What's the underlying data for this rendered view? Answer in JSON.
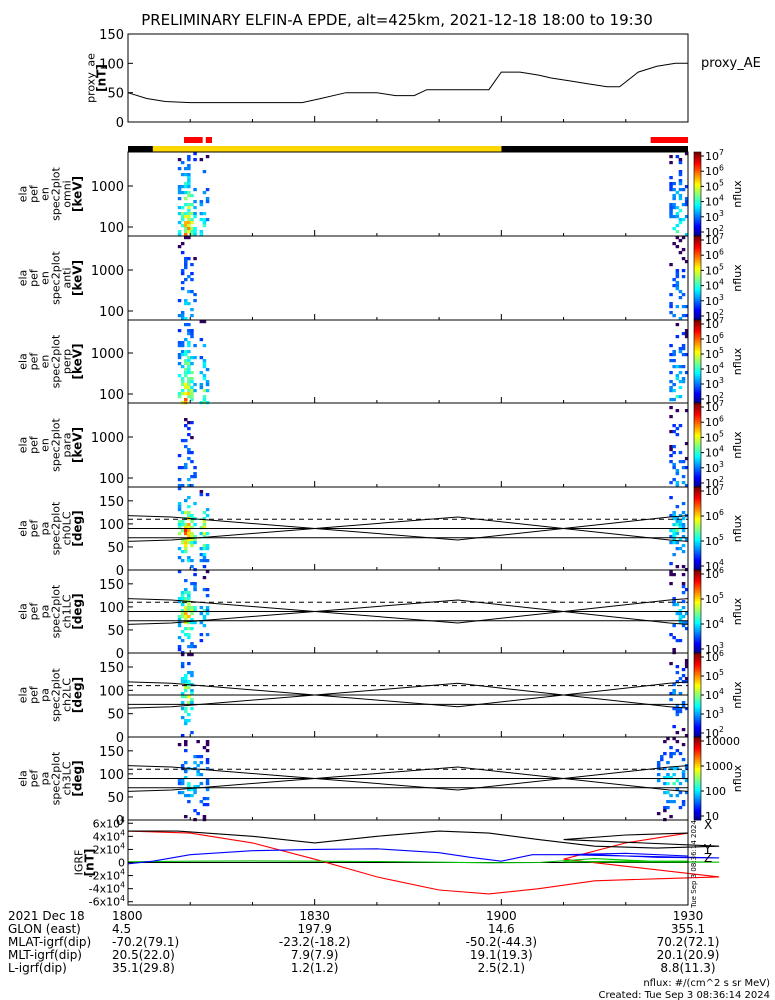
{
  "title": "PRELIMINARY ELFIN-A EPDE, alt=425km, 2021-12-18 18:00 to 19:30",
  "colors": {
    "ae_line": "#000000",
    "science_bar": "#ff0000",
    "sunlit_bar": "#ffd700",
    "eclipse_bar": "#000000",
    "igrf_x": "#ff0000",
    "igrf_y": "#00c000",
    "igrf_z": "#0000ff",
    "igrf_total": "#000000"
  },
  "chart_data": [
    {
      "type": "line",
      "name": "proxy_ae",
      "ylabel": "proxy_ae [nT]",
      "legend": "proxy_AE",
      "ylim": [
        0,
        150
      ],
      "yticks": [
        "0",
        "50",
        "100",
        "150"
      ],
      "x_hhmm": [
        1800,
        1803,
        1806,
        1810,
        1820,
        1825,
        1828,
        1831,
        1835,
        1840,
        1843,
        1846,
        1848,
        1855,
        1858,
        1900,
        1903,
        1906,
        1908,
        1911,
        1914,
        1917,
        1919,
        1922,
        1925,
        1928,
        1930
      ],
      "values": [
        50,
        40,
        35,
        33,
        33,
        33,
        33,
        40,
        50,
        50,
        45,
        45,
        55,
        55,
        55,
        85,
        85,
        80,
        75,
        70,
        65,
        60,
        60,
        85,
        95,
        100,
        100
      ]
    },
    {
      "type": "heatmap",
      "name": "ela_pef_en_spec2plot_omni",
      "ylabel": "ela pef en spec2plot omni [keV]",
      "zlabel": "nflux",
      "scale": "log",
      "yticks": [
        "100",
        "1000"
      ],
      "zticks": [
        "10^2",
        "10^3",
        "10^4",
        "10^5",
        "10^6",
        "10^7"
      ],
      "bursts": [
        {
          "x": [
            1808,
            1811
          ],
          "intensity": 0.85
        },
        {
          "x": [
            1811.5,
            1813
          ],
          "intensity": 0.55
        },
        {
          "x": [
            1927,
            1930
          ],
          "intensity": 0.5
        }
      ]
    },
    {
      "type": "heatmap",
      "name": "ela_pef_en_spec2plot_anti",
      "ylabel": "ela pef en spec2plot anti [keV]",
      "zlabel": "nflux",
      "scale": "log",
      "yticks": [
        "100",
        "1000"
      ],
      "zticks": [
        "10^2",
        "10^3",
        "10^4",
        "10^5",
        "10^6",
        "10^7"
      ],
      "bursts": [
        {
          "x": [
            1808,
            1811
          ],
          "intensity": 0.35
        },
        {
          "x": [
            1927,
            1930
          ],
          "intensity": 0.3
        }
      ]
    },
    {
      "type": "heatmap",
      "name": "ela_pef_en_spec2plot_perp",
      "ylabel": "ela pef en spec2plot perp [keV]",
      "zlabel": "nflux",
      "scale": "log",
      "yticks": [
        "100",
        "1000"
      ],
      "zticks": [
        "10^2",
        "10^3",
        "10^4",
        "10^5",
        "10^6",
        "10^7"
      ],
      "bursts": [
        {
          "x": [
            1808,
            1811
          ],
          "intensity": 0.85
        },
        {
          "x": [
            1811.5,
            1813
          ],
          "intensity": 0.55
        },
        {
          "x": [
            1927,
            1930
          ],
          "intensity": 0.45
        }
      ]
    },
    {
      "type": "heatmap",
      "name": "ela_pef_en_spec2plot_para",
      "ylabel": "ela pef en spec2plot para [keV]",
      "zlabel": "nflux",
      "scale": "log",
      "yticks": [
        "100",
        "1000"
      ],
      "zticks": [
        "10^2",
        "10^3",
        "10^4",
        "10^5",
        "10^6",
        "10^7"
      ],
      "bursts": [
        {
          "x": [
            1808,
            1811
          ],
          "intensity": 0.3
        },
        {
          "x": [
            1927,
            1930
          ],
          "intensity": 0.3
        }
      ]
    },
    {
      "type": "heatmap",
      "name": "ela_pef_pa_spec2plot_ch0LC",
      "ylabel": "ela pef pa spec2plot ch0LC [deg]",
      "zlabel": "nflux",
      "ylim": [
        0,
        180
      ],
      "yticks": [
        "0",
        "50",
        "100",
        "150"
      ],
      "zticks": [
        "10^4",
        "10^5",
        "10^6",
        "10^7"
      ],
      "lc_x": [
        1800,
        1807,
        1853,
        1927,
        1930
      ],
      "lc_y": [
        62,
        65,
        115,
        65,
        62
      ],
      "alc_y": [
        118,
        115,
        65,
        115,
        118
      ],
      "bursts": [
        {
          "x": [
            1808,
            1811
          ],
          "intensity": 0.8
        },
        {
          "x": [
            1811.5,
            1813
          ],
          "intensity": 0.55
        },
        {
          "x": [
            1927,
            1930
          ],
          "intensity": 0.4
        }
      ]
    },
    {
      "type": "heatmap",
      "name": "ela_pef_pa_spec2plot_ch1LC",
      "ylabel": "ela pef pa spec2plot ch1LC [deg]",
      "zlabel": "nflux",
      "ylim": [
        0,
        180
      ],
      "yticks": [
        "0",
        "50",
        "100",
        "150"
      ],
      "zticks": [
        "10^3",
        "10^4",
        "10^5",
        "10^6"
      ],
      "lc_x": [
        1800,
        1807,
        1853,
        1927,
        1930
      ],
      "lc_y": [
        62,
        65,
        115,
        65,
        62
      ],
      "alc_y": [
        118,
        115,
        65,
        115,
        118
      ],
      "bursts": [
        {
          "x": [
            1808,
            1811
          ],
          "intensity": 0.65
        },
        {
          "x": [
            1811.5,
            1813
          ],
          "intensity": 0.35
        },
        {
          "x": [
            1927,
            1930
          ],
          "intensity": 0.3
        }
      ]
    },
    {
      "type": "heatmap",
      "name": "ela_pef_pa_spec2plot_ch2LC",
      "ylabel": "ela pef pa spec2plot ch2LC [deg]",
      "zlabel": "nflux",
      "ylim": [
        0,
        180
      ],
      "yticks": [
        "0",
        "50",
        "100",
        "150"
      ],
      "zticks": [
        "10^2",
        "10^3",
        "10^4",
        "10^5",
        "10^6"
      ],
      "lc_x": [
        1800,
        1807,
        1853,
        1927,
        1930
      ],
      "lc_y": [
        62,
        65,
        115,
        65,
        62
      ],
      "alc_y": [
        118,
        115,
        65,
        115,
        118
      ],
      "bursts": [
        {
          "x": [
            1808.5,
            1810.5
          ],
          "intensity": 0.6
        },
        {
          "x": [
            1927,
            1930
          ],
          "intensity": 0.25
        }
      ]
    },
    {
      "type": "heatmap",
      "name": "ela_pef_pa_spec2plot_ch3LC",
      "ylabel": "ela pef pa spec2plot ch3LC [deg]",
      "zlabel": "nflux",
      "ylim": [
        0,
        180
      ],
      "yticks": [
        "0",
        "50",
        "100",
        "150"
      ],
      "zticks": [
        "10",
        "100",
        "1000",
        "10000"
      ],
      "lc_x": [
        1800,
        1807,
        1853,
        1927,
        1930
      ],
      "lc_y": [
        62,
        65,
        115,
        65,
        62
      ],
      "alc_y": [
        118,
        115,
        65,
        115,
        118
      ],
      "bursts": [
        {
          "x": [
            1808,
            1813
          ],
          "intensity": 0.35
        },
        {
          "x": [
            1925,
            1930
          ],
          "intensity": 0.35
        }
      ]
    },
    {
      "type": "line",
      "name": "IGRF",
      "ylabel": "IGRF [nT]",
      "ylim": [
        -65000,
        65000
      ],
      "yticks": [
        "-6x10^4",
        "-4x10^4",
        "-2x10^4",
        "0",
        "2x10^4",
        "4x10^4",
        "6x10^4"
      ],
      "legend": [
        "X",
        "Y",
        "Z"
      ],
      "series": [
        {
          "name": "X",
          "x": [
            1800,
            1810,
            1820,
            1830,
            1840,
            1850,
            1858,
            1866,
            1875,
            1885,
            1895,
            1910,
            1920,
            1930
          ],
          "values": [
            48000,
            45000,
            30000,
            5000,
            -22000,
            -42000,
            -48000,
            -40000,
            -28000,
            -25000,
            -22000,
            5000,
            30000,
            45000
          ]
        },
        {
          "name": "Y",
          "x": [
            1800,
            1810,
            1820,
            1830,
            1840,
            1850,
            1858,
            1866,
            1875,
            1885,
            1895,
            1910,
            1920,
            1930
          ],
          "values": [
            1000,
            2000,
            2500,
            2000,
            1500,
            500,
            -500,
            0,
            6000,
            1500,
            500,
            1000,
            2000,
            2000
          ]
        },
        {
          "name": "Z",
          "x": [
            1800,
            1804,
            1810,
            1820,
            1830,
            1840,
            1850,
            1855,
            1860,
            1865,
            1875,
            1885,
            1895,
            1910,
            1920,
            1930
          ],
          "values": [
            -2000,
            2000,
            12000,
            18000,
            20000,
            21000,
            15000,
            8000,
            2000,
            12000,
            12000,
            8000,
            7000,
            12000,
            14000,
            10000
          ]
        },
        {
          "name": "total",
          "x": [
            1800,
            1808,
            1820,
            1830,
            1840,
            1850,
            1858,
            1866,
            1875,
            1885,
            1895,
            1910,
            1920,
            1930
          ],
          "values": [
            48000,
            48000,
            40000,
            30000,
            40000,
            48000,
            45000,
            35000,
            25000,
            22000,
            25000,
            35000,
            42000,
            45000
          ]
        }
      ]
    }
  ],
  "time_axis": {
    "xlim": [
      1800,
      1930
    ],
    "row_labels": [
      "2021 Dec 18",
      "GLON (east)",
      "MLAT-igrf(dip)",
      "MLT-igrf(dip)",
      "L-igrf(dip)"
    ],
    "ticks": [
      {
        "t": 1800,
        "label": "1800",
        "glon": "4.5",
        "mlat": "-70.2(79.1)",
        "mlt": "20.5(22.0)",
        "l": "35.1(29.8)"
      },
      {
        "t": 1830,
        "label": "1830",
        "glon": "197.9",
        "mlat": "-23.2(-18.2)",
        "mlt": "7.9(7.9)",
        "l": "1.2(1.2)"
      },
      {
        "t": 1900,
        "label": "1900",
        "glon": "14.6",
        "mlat": "-50.2(-44.3)",
        "mlt": "19.1(19.3)",
        "l": "2.5(2.1)"
      },
      {
        "t": 1930,
        "label": "1930",
        "glon": "355.1",
        "mlat": "70.2(72.1)",
        "mlt": "20.1(20.9)",
        "l": "8.8(11.3)"
      }
    ]
  },
  "status_bar": {
    "science": [
      [
        1809,
        1812
      ],
      [
        1812.5,
        1813.5
      ],
      [
        1924,
        1930
      ]
    ],
    "sunlit": [
      [
        1804,
        1900
      ]
    ],
    "eclipse": [
      [
        1800,
        1804
      ],
      [
        1900,
        1930
      ]
    ]
  },
  "footer": {
    "units": "nflux: #/(cm^2 s sr MeV)",
    "created": "Created: Tue Sep  3 08:36:14 2024",
    "side_stamp": "Tue Sep  3 08:36:14 2024"
  }
}
